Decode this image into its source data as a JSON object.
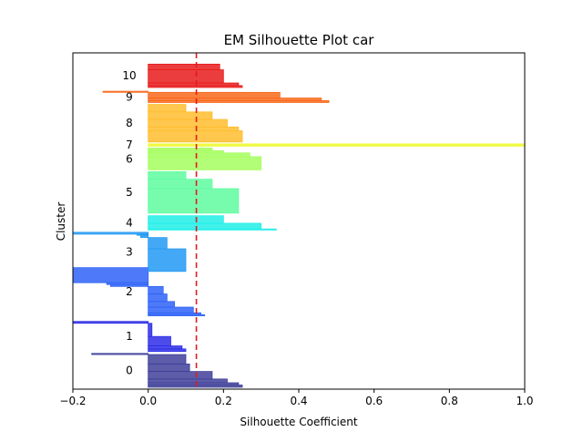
{
  "chart_data": {
    "type": "silhouette",
    "title": "EM Silhouette Plot car",
    "xlabel": "Silhouette Coefficient",
    "ylabel": "Cluster",
    "xlim": [
      -0.2,
      1.0
    ],
    "xticks": [
      -0.2,
      0.0,
      0.2,
      0.4,
      0.6,
      0.8,
      1.0
    ],
    "xtick_labels": [
      "−0.2",
      "0.0",
      "0.2",
      "0.4",
      "0.6",
      "0.8",
      "1.0"
    ],
    "ylim": [
      0,
      1788
    ],
    "mean_silhouette": 0.128,
    "mean_line_color": "#e41a1c",
    "clusters": [
      {
        "label": "0",
        "color": "#3f3f9a",
        "lower": 10,
        "profile": [
          [
            0.25,
            12
          ],
          [
            0.24,
            12
          ],
          [
            0.21,
            20
          ],
          [
            0.17,
            40
          ],
          [
            0.11,
            40
          ],
          [
            0.1,
            50
          ],
          [
            -0.15,
            6
          ]
        ]
      },
      {
        "label": "1",
        "color": "#2d2de8",
        "lower": 200,
        "profile": [
          [
            0.1,
            14
          ],
          [
            0.09,
            16
          ],
          [
            0.06,
            50
          ],
          [
            0.01,
            70
          ],
          [
            -0.2,
            10
          ]
        ]
      },
      {
        "label": "2",
        "color": "#2f63f8",
        "lower": 390,
        "profile": [
          [
            0.15,
            6
          ],
          [
            0.14,
            10
          ],
          [
            0.12,
            30
          ],
          [
            0.07,
            30
          ],
          [
            0.05,
            40
          ],
          [
            0.04,
            40
          ],
          [
            -0.1,
            10
          ],
          [
            -0.11,
            10
          ],
          [
            -0.2,
            80
          ]
        ]
      },
      {
        "label": "3",
        "color": "#229af4",
        "lower": 626,
        "profile": [
          [
            0.1,
            120
          ],
          [
            0.05,
            60
          ],
          [
            -0.02,
            12
          ],
          [
            -0.03,
            6
          ],
          [
            -0.2,
            10
          ]
        ]
      },
      {
        "label": "4",
        "color": "#22eee8",
        "lower": 846,
        "profile": [
          [
            0.34,
            6
          ],
          [
            0.3,
            30
          ],
          [
            0.2,
            40
          ]
        ]
      },
      {
        "label": "5",
        "color": "#5ffba0",
        "lower": 936,
        "profile": [
          [
            0.24,
            130
          ],
          [
            0.17,
            50
          ],
          [
            0.1,
            40
          ]
        ]
      },
      {
        "label": "6",
        "color": "#a5fe5e",
        "lower": 1166,
        "profile": [
          [
            0.3,
            70
          ],
          [
            0.27,
            20
          ],
          [
            0.2,
            12
          ],
          [
            0.17,
            14
          ]
        ]
      },
      {
        "label": "7",
        "color": "#eef92a",
        "lower": 1292,
        "profile": [
          [
            1.0,
            12
          ]
        ]
      },
      {
        "label": "8",
        "color": "#ffbd2e",
        "lower": 1314,
        "profile": [
          [
            0.25,
            60
          ],
          [
            0.24,
            20
          ],
          [
            0.21,
            40
          ],
          [
            0.17,
            40
          ],
          [
            0.1,
            40
          ]
        ]
      },
      {
        "label": "9",
        "color": "#f8691b",
        "lower": 1524,
        "profile": [
          [
            0.48,
            10
          ],
          [
            0.46,
            14
          ],
          [
            0.35,
            30
          ],
          [
            -0.12,
            6
          ]
        ]
      },
      {
        "label": "10",
        "color": "#e81b1b",
        "lower": 1604,
        "profile": [
          [
            0.25,
            10
          ],
          [
            0.24,
            14
          ],
          [
            0.2,
            70
          ],
          [
            0.19,
            30
          ]
        ]
      }
    ]
  }
}
